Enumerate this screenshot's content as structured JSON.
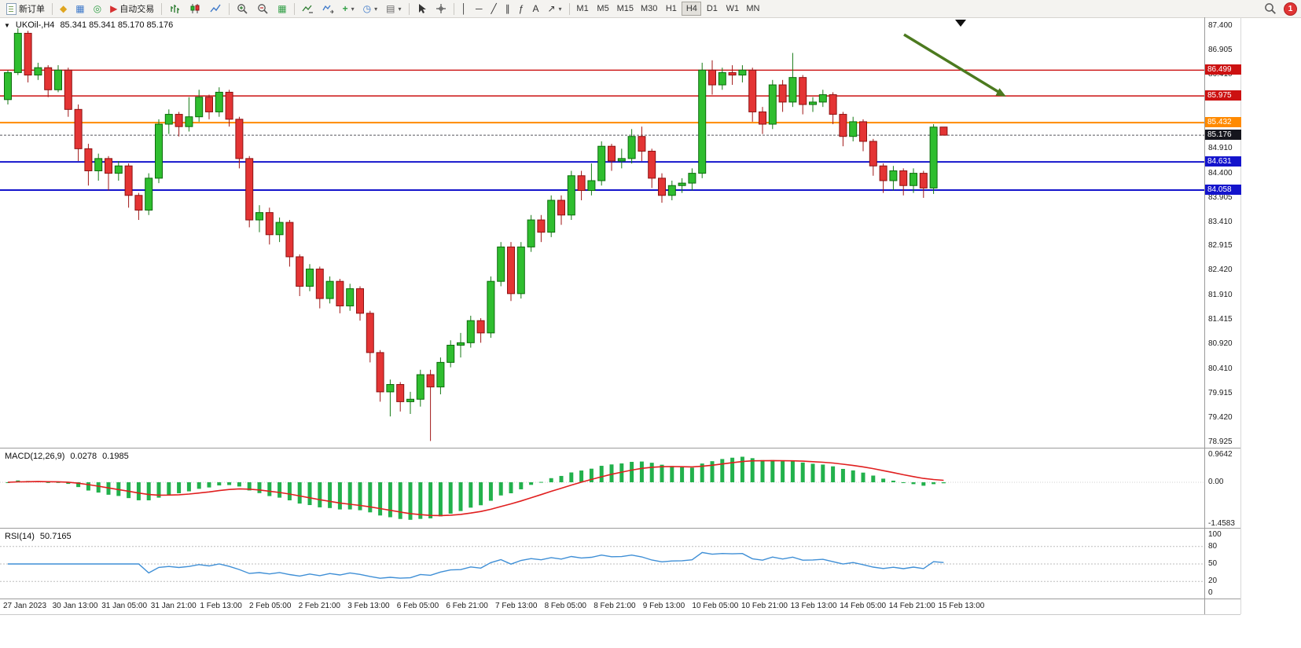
{
  "toolbar": {
    "new_order_label": "新订单",
    "algo_trading_label": "自动交易",
    "timeframes": [
      "M1",
      "M5",
      "M15",
      "M30",
      "H1",
      "H4",
      "D1",
      "W1",
      "MN"
    ],
    "active_timeframe": "H4",
    "notification_badge": "1",
    "icon_glyphs": {
      "market_watch": "◆",
      "data_window": "▦",
      "navigator": "◎",
      "algo_play": "▶",
      "tile_windows": "▦",
      "indicator_add": "+",
      "clock": "◷",
      "template": "▤",
      "dropdown_arrow": "▾",
      "vertical_line": "│",
      "horizontal_line": "─",
      "trend_line": "╱",
      "equidistant_channel": "∥",
      "fibonacci": "ƒ",
      "text_tool": "A",
      "shapes": "↗",
      "collapse_arrow": "▼"
    }
  },
  "chart": {
    "title_symbol": "UKOil-,H4",
    "title_ohlc": "85.341 85.341 85.170 85.176"
  },
  "indicators": {
    "macd": {
      "display": "MACD(12,26,9)",
      "value_main": "0.0278",
      "value_signal": "0.1985"
    },
    "rsi": {
      "display": "RSI(14)",
      "value": "50.7165"
    }
  },
  "chart_data": {
    "type": "candlestick",
    "symbol": "UKOil-",
    "timeframe": "H4",
    "ylim": [
      78.925,
      87.4
    ],
    "y_axis_ticks": [
      "87.400",
      "86.905",
      "86.410",
      "85.910",
      "85.420",
      "84.910",
      "84.400",
      "83.905",
      "83.410",
      "82.915",
      "82.420",
      "81.910",
      "81.415",
      "80.920",
      "80.410",
      "79.915",
      "79.420",
      "78.925"
    ],
    "x_time_labels": [
      "27 Jan 2023",
      "30 Jan 13:00",
      "31 Jan 05:00",
      "31 Jan 21:00",
      "1 Feb 13:00",
      "2 Feb 05:00",
      "2 Feb 21:00",
      "3 Feb 13:00",
      "6 Feb 05:00",
      "6 Feb 21:00",
      "7 Feb 13:00",
      "8 Feb 05:00",
      "8 Feb 21:00",
      "9 Feb 13:00",
      "10 Feb 05:00",
      "10 Feb 21:00",
      "13 Feb 13:00",
      "14 Feb 05:00",
      "14 Feb 21:00",
      "15 Feb 13:00"
    ],
    "levels": [
      {
        "price": 86.499,
        "label": "86.499",
        "color": "#cc1111",
        "role": "resistance",
        "style": "solid"
      },
      {
        "price": 85.975,
        "label": "85.975",
        "color": "#cc1111",
        "role": "resistance",
        "style": "solid"
      },
      {
        "price": 85.432,
        "label": "85.432",
        "color": "#ff8a00",
        "role": "pivot",
        "style": "solid"
      },
      {
        "price": 85.176,
        "label": "85.176",
        "color": "#15151d",
        "line_color": "#55555c",
        "role": "current-price",
        "style": "dash"
      },
      {
        "price": 84.631,
        "label": "84.631",
        "color": "#1414cc",
        "role": "support",
        "style": "solid"
      },
      {
        "price": 84.058,
        "label": "84.058",
        "color": "#1414cc",
        "role": "support",
        "style": "solid"
      }
    ],
    "candles_ohlc": [
      [
        85.9,
        86.5,
        85.8,
        86.45
      ],
      [
        86.45,
        87.35,
        86.4,
        87.25
      ],
      [
        87.25,
        87.3,
        86.25,
        86.4
      ],
      [
        86.4,
        86.65,
        86.3,
        86.55
      ],
      [
        86.55,
        86.6,
        85.95,
        86.1
      ],
      [
        86.1,
        86.6,
        86.05,
        86.5
      ],
      [
        86.5,
        86.55,
        85.55,
        85.7
      ],
      [
        85.7,
        85.8,
        84.65,
        84.9
      ],
      [
        84.9,
        85.0,
        84.15,
        84.45
      ],
      [
        84.45,
        84.8,
        84.25,
        84.7
      ],
      [
        84.7,
        84.75,
        84.05,
        84.4
      ],
      [
        84.4,
        84.65,
        84.25,
        84.55
      ],
      [
        84.55,
        84.6,
        83.7,
        83.95
      ],
      [
        83.95,
        84.0,
        83.45,
        83.65
      ],
      [
        83.65,
        84.4,
        83.55,
        84.3
      ],
      [
        84.3,
        85.5,
        84.2,
        85.4
      ],
      [
        85.4,
        85.7,
        85.2,
        85.6
      ],
      [
        85.6,
        85.65,
        85.15,
        85.35
      ],
      [
        85.35,
        85.95,
        85.25,
        85.55
      ],
      [
        85.55,
        86.1,
        85.45,
        85.95
      ],
      [
        85.95,
        86.0,
        85.5,
        85.65
      ],
      [
        85.65,
        86.15,
        85.55,
        86.05
      ],
      [
        86.05,
        86.1,
        85.35,
        85.5
      ],
      [
        85.5,
        85.55,
        84.5,
        84.7
      ],
      [
        84.7,
        84.75,
        83.3,
        83.45
      ],
      [
        83.45,
        83.75,
        83.2,
        83.6
      ],
      [
        83.6,
        83.7,
        82.95,
        83.15
      ],
      [
        83.15,
        83.5,
        83.0,
        83.4
      ],
      [
        83.4,
        83.45,
        82.5,
        82.7
      ],
      [
        82.7,
        82.75,
        81.9,
        82.1
      ],
      [
        82.1,
        82.55,
        82.0,
        82.45
      ],
      [
        82.45,
        82.5,
        81.65,
        81.85
      ],
      [
        81.85,
        82.3,
        81.75,
        82.2
      ],
      [
        82.2,
        82.25,
        81.55,
        81.7
      ],
      [
        81.7,
        82.15,
        81.6,
        82.05
      ],
      [
        82.05,
        82.1,
        81.4,
        81.55
      ],
      [
        81.55,
        81.6,
        80.55,
        80.75
      ],
      [
        80.75,
        80.8,
        79.75,
        79.95
      ],
      [
        79.95,
        80.2,
        79.45,
        80.1
      ],
      [
        80.1,
        80.15,
        79.55,
        79.75
      ],
      [
        79.75,
        79.95,
        79.5,
        79.8
      ],
      [
        79.8,
        80.4,
        79.65,
        80.3
      ],
      [
        80.3,
        80.4,
        78.95,
        80.05
      ],
      [
        80.05,
        80.65,
        79.9,
        80.55
      ],
      [
        80.55,
        81.0,
        80.45,
        80.9
      ],
      [
        80.9,
        81.15,
        80.65,
        80.95
      ],
      [
        80.95,
        81.5,
        80.85,
        81.4
      ],
      [
        81.4,
        81.45,
        80.95,
        81.15
      ],
      [
        81.15,
        82.3,
        81.05,
        82.2
      ],
      [
        82.2,
        83.0,
        82.1,
        82.9
      ],
      [
        82.9,
        83.0,
        81.8,
        81.95
      ],
      [
        81.95,
        83.0,
        81.85,
        82.9
      ],
      [
        82.9,
        83.55,
        82.8,
        83.45
      ],
      [
        83.45,
        83.55,
        83.0,
        83.2
      ],
      [
        83.2,
        83.95,
        83.1,
        83.85
      ],
      [
        83.85,
        83.95,
        83.35,
        83.55
      ],
      [
        83.55,
        84.45,
        83.45,
        84.35
      ],
      [
        84.35,
        84.45,
        83.85,
        84.05
      ],
      [
        84.05,
        84.6,
        83.95,
        84.25
      ],
      [
        84.25,
        85.05,
        84.15,
        84.95
      ],
      [
        84.95,
        85.0,
        84.45,
        84.65
      ],
      [
        84.65,
        84.9,
        84.5,
        84.7
      ],
      [
        84.7,
        85.3,
        84.6,
        85.15
      ],
      [
        85.15,
        85.35,
        84.65,
        84.85
      ],
      [
        84.85,
        84.9,
        84.1,
        84.3
      ],
      [
        84.3,
        84.4,
        83.8,
        83.95
      ],
      [
        83.95,
        84.25,
        83.85,
        84.15
      ],
      [
        84.15,
        84.3,
        84.0,
        84.2
      ],
      [
        84.2,
        84.5,
        84.05,
        84.4
      ],
      [
        84.4,
        86.65,
        84.3,
        86.5
      ],
      [
        86.5,
        86.7,
        86.0,
        86.2
      ],
      [
        86.2,
        86.55,
        86.1,
        86.45
      ],
      [
        86.45,
        86.6,
        86.2,
        86.4
      ],
      [
        86.4,
        86.6,
        86.25,
        86.5
      ],
      [
        86.5,
        86.55,
        85.45,
        85.65
      ],
      [
        85.65,
        85.75,
        85.2,
        85.4
      ],
      [
        85.4,
        86.3,
        85.3,
        86.2
      ],
      [
        86.2,
        86.3,
        85.65,
        85.85
      ],
      [
        85.85,
        86.85,
        85.75,
        86.35
      ],
      [
        86.35,
        86.4,
        85.6,
        85.8
      ],
      [
        85.8,
        85.95,
        85.65,
        85.85
      ],
      [
        85.85,
        86.1,
        85.75,
        86.0
      ],
      [
        86.0,
        86.05,
        85.4,
        85.6
      ],
      [
        85.6,
        85.65,
        84.95,
        85.15
      ],
      [
        85.15,
        85.55,
        85.05,
        85.45
      ],
      [
        85.45,
        85.5,
        84.85,
        85.05
      ],
      [
        85.05,
        85.1,
        84.35,
        84.55
      ],
      [
        84.55,
        84.6,
        84.0,
        84.25
      ],
      [
        84.25,
        84.55,
        84.05,
        84.45
      ],
      [
        84.45,
        84.5,
        83.95,
        84.15
      ],
      [
        84.15,
        84.5,
        84.0,
        84.4
      ],
      [
        84.4,
        84.45,
        83.9,
        84.1
      ],
      [
        84.1,
        85.4,
        83.98,
        85.34
      ],
      [
        85.341,
        85.341,
        85.17,
        85.176
      ]
    ],
    "up_color": "#2fbe2f",
    "down_color": "#e43434",
    "indicator_panes": {
      "macd": {
        "params": "12,26,9",
        "axis_labels": [
          "0.9642",
          "0.00",
          "-1.4583"
        ],
        "histogram_color": "#22b14c",
        "signal_color": "#e01f1f"
      },
      "rsi": {
        "params": "14",
        "axis_labels": [
          "100",
          "80",
          "50",
          "20",
          "0"
        ],
        "level_lines": [
          80,
          50,
          20
        ],
        "line_color": "#3f8fd6"
      }
    },
    "annotations": [
      {
        "type": "trend-arrow",
        "color": "#4c7a1f",
        "note": "diagonal arrow pointing down-right toward the 85.975 resistance line"
      },
      {
        "type": "triangle-marker",
        "color": "#111111",
        "note": "small black down triangle at top of chart"
      }
    ]
  }
}
